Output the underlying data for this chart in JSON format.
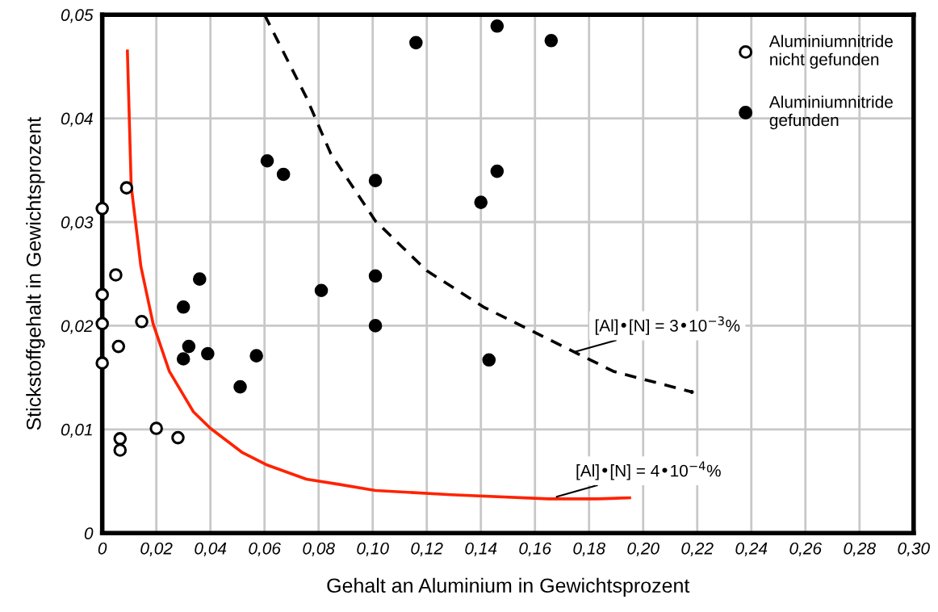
{
  "chart_data": {
    "type": "scatter",
    "xlabel": "Gehalt an Aluminium in Gewichtsprozent",
    "ylabel": "Stickstoffgehalt in Gewichtsprozent",
    "xlim": [
      0,
      0.3
    ],
    "ylim": [
      0,
      0.05
    ],
    "xticks": [
      {
        "value": 0,
        "label": "0"
      },
      {
        "value": 0.02,
        "label": "0,02"
      },
      {
        "value": 0.04,
        "label": "0,04"
      },
      {
        "value": 0.06,
        "label": "0,06"
      },
      {
        "value": 0.08,
        "label": "0,08"
      },
      {
        "value": 0.1,
        "label": "0,10"
      },
      {
        "value": 0.12,
        "label": "0,12"
      },
      {
        "value": 0.14,
        "label": "0,14"
      },
      {
        "value": 0.16,
        "label": "0,16"
      },
      {
        "value": 0.18,
        "label": "0,18"
      },
      {
        "value": 0.2,
        "label": "0,20"
      },
      {
        "value": 0.22,
        "label": "0,22"
      },
      {
        "value": 0.24,
        "label": "0,24"
      },
      {
        "value": 0.26,
        "label": "0,26"
      },
      {
        "value": 0.28,
        "label": "0,28"
      },
      {
        "value": 0.3,
        "label": "0,30"
      }
    ],
    "yticks": [
      {
        "value": 0,
        "label": "0"
      },
      {
        "value": 0.01,
        "label": "0,01"
      },
      {
        "value": 0.02,
        "label": "0,02"
      },
      {
        "value": 0.03,
        "label": "0,03"
      },
      {
        "value": 0.04,
        "label": "0,04"
      },
      {
        "value": 0.05,
        "label": "0,05"
      }
    ],
    "grid": true,
    "legend": "top right",
    "marker": "circle",
    "series": [
      {
        "name": "Aluminiumnitride\nnicht gefunden",
        "color": "#ffffff",
        "x": [
          0.009,
          0,
          0.005,
          0,
          0,
          0.0146,
          0.006,
          0,
          0.02,
          0.028,
          0.0066,
          0.0066
        ],
        "values": [
          0.0333,
          0.0313,
          0.0249,
          0.023,
          0.0202,
          0.0204,
          0.018,
          0.0164,
          0.0101,
          0.0092,
          0.0091,
          0.008
        ]
      },
      {
        "name": "Aluminiumnitride\ngefunden",
        "color": "#000000",
        "x": [
          0.03,
          0.036,
          0.032,
          0.03,
          0.039,
          0.051,
          0.057,
          0.081,
          0.061,
          0.067,
          0.101,
          0.116,
          0.146,
          0.166,
          0.146,
          0.14,
          0.101,
          0.101,
          0.143
        ],
        "values": [
          0.0218,
          0.0245,
          0.018,
          0.0168,
          0.0173,
          0.0141,
          0.0171,
          0.0234,
          0.0359,
          0.0346,
          0.034,
          0.0473,
          0.0489,
          0.0475,
          0.0349,
          0.0319,
          0.0248,
          0.02,
          0.0167
        ]
      },
      {
        "type": "line",
        "color": "#ff2200",
        "line_style": "solid",
        "marker": "none",
        "x": [
          0.0093,
          0.0107,
          0.0143,
          0.0188,
          0.0248,
          0.0337,
          0.04,
          0.0516,
          0.0606,
          0.0755,
          0.0875,
          0.101,
          0.129,
          0.165,
          0.183,
          0.195
        ],
        "values": [
          0.0465,
          0.0335,
          0.0257,
          0.0202,
          0.0156,
          0.0117,
          0.0101,
          0.0078,
          0.0066,
          0.0052,
          0.0047,
          0.0041,
          0.0037,
          0.0033,
          0.0033,
          0.0034
        ]
      },
      {
        "type": "line",
        "color": "#000000",
        "line_style": "dashed",
        "marker": "none",
        "x": [
          0.06,
          0.0755,
          0.0845,
          0.101,
          0.12,
          0.141,
          0.165,
          0.189,
          0.218
        ],
        "values": [
          0.05,
          0.042,
          0.0366,
          0.0301,
          0.0253,
          0.0218,
          0.0187,
          0.0156,
          0.0136
        ]
      }
    ],
    "annotations": [
      {
        "text": "[Al]•[N] = 3•10$^{−3}$%",
        "x": 0.175,
        "y": 0.0175
      },
      {
        "text": "[Al]•[N] = 4•10$^{−4}$%",
        "x": 0.168,
        "y": 0.0035
      }
    ]
  }
}
